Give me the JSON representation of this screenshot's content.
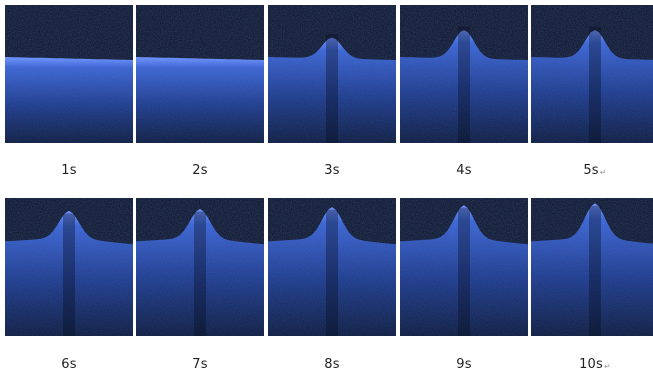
{
  "frames": [
    {
      "label": "1s",
      "mark": "",
      "peak": 0
    },
    {
      "label": "2s",
      "mark": "",
      "peak": 0
    },
    {
      "label": "3s",
      "mark": "",
      "peak": 0.55
    },
    {
      "label": "4s",
      "mark": "",
      "peak": 0.75
    },
    {
      "label": "5s",
      "mark": "↵",
      "peak": 0.75
    },
    {
      "label": "6s",
      "mark": "",
      "peak": 0.7
    },
    {
      "label": "7s",
      "mark": "",
      "peak": 0.75
    },
    {
      "label": "8s",
      "mark": "",
      "peak": 0.8
    },
    {
      "label": "9s",
      "mark": "",
      "peak": 0.85
    },
    {
      "label": "10s",
      "mark": "↵",
      "peak": 0.9
    }
  ],
  "colors": {
    "tissue": "#3a63d0",
    "tissue_bright": "#6f93ff",
    "background": "#0a1226",
    "deep": "#0c1a3c"
  }
}
